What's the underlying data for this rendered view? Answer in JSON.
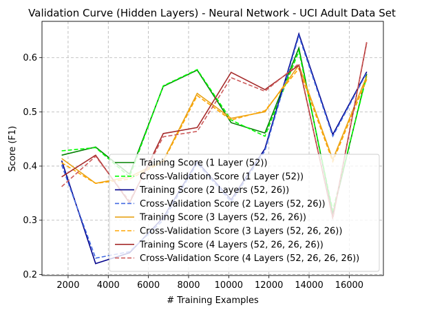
{
  "chart_data": {
    "type": "line",
    "title": "Validation Curve (Hidden Layers) - Neural Network - UCI Adult Data Set",
    "xlabel": "# Training Examples",
    "ylabel": "Score (F1)",
    "xlim": [
      700,
      17700
    ],
    "ylim": [
      0.198,
      0.667
    ],
    "xticks": [
      2000,
      4000,
      6000,
      8000,
      10000,
      12000,
      14000,
      16000
    ],
    "yticks": [
      0.2,
      0.3,
      0.4,
      0.5,
      0.6
    ],
    "grid": true,
    "legend_position": "lower-right",
    "x": [
      1680,
      3370,
      5060,
      6740,
      8430,
      10120,
      11800,
      13490,
      15180,
      16870
    ],
    "series": [
      {
        "name": "Training Score (1 Layer (52))",
        "color": "#008000",
        "dash": "solid",
        "values": [
          0.42,
          0.435,
          0.385,
          0.547,
          0.577,
          0.48,
          0.461,
          0.618,
          0.312,
          0.57
        ]
      },
      {
        "name": "Cross-Validation Score (1 Layer (52))",
        "color": "#00ff00",
        "dash": "dashed",
        "values": [
          0.428,
          0.434,
          0.38,
          0.548,
          0.578,
          0.485,
          0.455,
          0.612,
          0.318,
          0.566
        ]
      },
      {
        "name": "Training Score (2 Layers (52, 26))",
        "color": "#00008b",
        "dash": "solid",
        "values": [
          0.41,
          0.22,
          0.24,
          0.305,
          0.408,
          0.338,
          0.432,
          0.644,
          0.458,
          0.574
        ]
      },
      {
        "name": "Cross-Validation Score (2 Layers (52, 26))",
        "color": "#4169e1",
        "dash": "dashed",
        "values": [
          0.402,
          0.23,
          0.242,
          0.3,
          0.405,
          0.334,
          0.428,
          0.64,
          0.455,
          0.572
        ]
      },
      {
        "name": "Training Score (3 Layers (52, 26, 26))",
        "color": "#e8a317",
        "dash": "solid",
        "values": [
          0.414,
          0.368,
          0.38,
          0.41,
          0.534,
          0.488,
          0.5,
          0.586,
          0.412,
          0.566
        ]
      },
      {
        "name": "Cross-Validation Score (3 Layers (52, 26, 26))",
        "color": "#ffa500",
        "dash": "dashed",
        "values": [
          0.406,
          0.368,
          0.376,
          0.408,
          0.53,
          0.485,
          0.502,
          0.58,
          0.408,
          0.56
        ]
      },
      {
        "name": "Training Score (4 Layers (52, 26, 26, 26))",
        "color": "#a52a2a",
        "dash": "solid",
        "values": [
          0.38,
          0.42,
          0.332,
          0.46,
          0.471,
          0.573,
          0.541,
          0.586,
          0.305,
          0.628
        ]
      },
      {
        "name": "Cross-Validation Score (4 Layers (52, 26, 26, 26))",
        "color": "#cd5c5c",
        "dash": "dashed",
        "values": [
          0.362,
          0.418,
          0.335,
          0.454,
          0.464,
          0.563,
          0.538,
          0.589,
          0.302,
          0.63
        ]
      }
    ]
  }
}
